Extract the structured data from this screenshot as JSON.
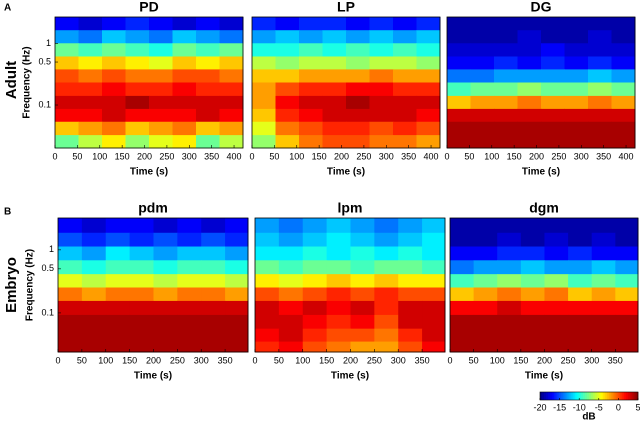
{
  "figure": {
    "panels": [
      "A",
      "B"
    ],
    "rows": [
      "Adult",
      "Embryo"
    ]
  },
  "chart_data": [
    {
      "type": "heatmap",
      "title": "PD",
      "x_label": "Time (s)",
      "y_label": "Frequency (Hz)",
      "xlim": [
        0,
        420
      ],
      "xticks": [
        0,
        50,
        100,
        150,
        200,
        250,
        300,
        350,
        400
      ],
      "ylim": [
        0.02,
        2.7
      ],
      "yticks": [
        1,
        0.5,
        0.1
      ],
      "log_y": true,
      "x": [
        26,
        79,
        131,
        184,
        236,
        289,
        341,
        394
      ],
      "y": [
        2.1,
        1.29,
        0.79,
        0.48,
        0.3,
        0.18,
        0.11,
        0.068,
        0.042,
        0.025
      ],
      "z": [
        [
          -17,
          -18,
          -17,
          -16,
          -17,
          -18,
          -17,
          -18
        ],
        [
          -13,
          -14,
          -12,
          -13,
          -14,
          -12,
          -13,
          -14
        ],
        [
          -8,
          -9,
          -8,
          -9,
          -10,
          -8,
          -9,
          -8
        ],
        [
          -3,
          -4,
          -3,
          -4,
          -5,
          -3,
          -4,
          -3
        ],
        [
          0,
          -1,
          0,
          -1,
          -1,
          0,
          0,
          -1
        ],
        [
          1,
          1,
          2,
          1,
          1,
          2,
          1,
          1
        ],
        [
          3,
          3,
          3,
          4,
          3,
          3,
          3,
          3
        ],
        [
          2,
          2,
          3,
          2,
          2,
          2,
          3,
          2
        ],
        [
          -3,
          -2,
          -1,
          -3,
          -2,
          -1,
          -3,
          -2
        ],
        [
          -8,
          -6,
          -4,
          -7,
          -5,
          -4,
          -8,
          -6
        ]
      ]
    },
    {
      "type": "heatmap",
      "title": "LP",
      "x_label": "Time (s)",
      "xlim": [
        0,
        420
      ],
      "xticks": [
        0,
        50,
        100,
        150,
        200,
        250,
        300,
        350,
        400
      ],
      "ylim": [
        0.02,
        2.7
      ],
      "log_y": true,
      "x": [
        26,
        79,
        131,
        184,
        236,
        289,
        341,
        394
      ],
      "y": [
        2.1,
        1.29,
        0.79,
        0.48,
        0.3,
        0.18,
        0.11,
        0.068,
        0.042,
        0.025
      ],
      "z": [
        [
          -16,
          -17,
          -16,
          -16,
          -17,
          -16,
          -17,
          -16
        ],
        [
          -13,
          -12,
          -13,
          -12,
          -13,
          -12,
          -13,
          -12
        ],
        [
          -10,
          -10,
          -9,
          -10,
          -9,
          -10,
          -9,
          -10
        ],
        [
          -6,
          -7,
          -6,
          -6,
          -7,
          -6,
          -6,
          -7
        ],
        [
          -3,
          -3,
          -2,
          -2,
          -2,
          -1,
          -2,
          -2
        ],
        [
          -2,
          0,
          1,
          1,
          2,
          2,
          1,
          1
        ],
        [
          -2,
          2,
          3,
          3,
          4,
          3,
          3,
          3
        ],
        [
          -3,
          1,
          2,
          3,
          3,
          3,
          3,
          2
        ],
        [
          -5,
          -1,
          0,
          1,
          1,
          0,
          1,
          0
        ],
        [
          -7,
          -3,
          -1,
          0,
          0,
          -1,
          -1,
          -2
        ]
      ]
    },
    {
      "type": "heatmap",
      "title": "DG",
      "x_label": "Time (s)",
      "xlim": [
        0,
        420
      ],
      "xticks": [
        0,
        50,
        100,
        150,
        200,
        250,
        300,
        350,
        400
      ],
      "ylim": [
        0.02,
        2.7
      ],
      "log_y": true,
      "x": [
        26,
        79,
        131,
        184,
        236,
        289,
        341,
        394
      ],
      "y": [
        2.1,
        1.29,
        0.79,
        0.48,
        0.3,
        0.18,
        0.11,
        0.068,
        0.042,
        0.025
      ],
      "z": [
        [
          -19,
          -19,
          -19,
          -19,
          -19,
          -19,
          -19,
          -19
        ],
        [
          -19,
          -19,
          -19,
          -18,
          -19,
          -19,
          -18,
          -19
        ],
        [
          -18,
          -18,
          -18,
          -18,
          -17,
          -18,
          -18,
          -18
        ],
        [
          -17,
          -17,
          -16,
          -17,
          -16,
          -17,
          -16,
          -17
        ],
        [
          -14,
          -14,
          -13,
          -13,
          -13,
          -13,
          -12,
          -13
        ],
        [
          -9,
          -8,
          -8,
          -7,
          -8,
          -8,
          -7,
          -8
        ],
        [
          -3,
          -2,
          -2,
          -1,
          -2,
          -2,
          -1,
          -2
        ],
        [
          3,
          3,
          3,
          3,
          3,
          3,
          3,
          3
        ],
        [
          4,
          4,
          4,
          4,
          4,
          4,
          4,
          4
        ],
        [
          4,
          4,
          4,
          4,
          4,
          4,
          4,
          4
        ]
      ]
    },
    {
      "type": "heatmap",
      "title": "pdm",
      "x_label": "Time (s)",
      "y_label": "Frequency (Hz)",
      "xlim": [
        0,
        398
      ],
      "xticks": [
        0,
        50,
        100,
        150,
        200,
        250,
        300,
        350
      ],
      "ylim": [
        0.024,
        3.2
      ],
      "yticks": [
        1,
        0.5,
        0.1
      ],
      "log_y": true,
      "x": [
        25,
        75,
        125,
        175,
        225,
        275,
        325,
        375
      ],
      "y": [
        2.4,
        1.45,
        0.88,
        0.53,
        0.32,
        0.2,
        0.12,
        0.072,
        0.044,
        0.028
      ],
      "z": [
        [
          -17,
          -18,
          -17,
          -17,
          -18,
          -17,
          -18,
          -17
        ],
        [
          -15,
          -16,
          -15,
          -16,
          -15,
          -16,
          -15,
          -16
        ],
        [
          -12,
          -13,
          -11,
          -12,
          -13,
          -12,
          -12,
          -13
        ],
        [
          -9,
          -10,
          -9,
          -9,
          -10,
          -9,
          -9,
          -10
        ],
        [
          -5,
          -6,
          -5,
          -5,
          -6,
          -5,
          -5,
          -6
        ],
        [
          -1,
          -2,
          -1,
          -1,
          -2,
          -1,
          -1,
          -2
        ],
        [
          3,
          3,
          3,
          3,
          3,
          3,
          3,
          3
        ],
        [
          4,
          4,
          4,
          4,
          4,
          4,
          4,
          4
        ],
        [
          4,
          4,
          4,
          4,
          4,
          4,
          4,
          4
        ],
        [
          4,
          4,
          4,
          4,
          4,
          4,
          4,
          4
        ]
      ]
    },
    {
      "type": "heatmap",
      "title": "lpm",
      "x_label": "Time (s)",
      "xlim": [
        0,
        398
      ],
      "xticks": [
        0,
        50,
        100,
        150,
        200,
        250,
        300,
        350
      ],
      "ylim": [
        0.024,
        3.2
      ],
      "log_y": true,
      "x": [
        25,
        75,
        125,
        175,
        225,
        275,
        325,
        375
      ],
      "y": [
        2.4,
        1.45,
        0.88,
        0.53,
        0.32,
        0.2,
        0.12,
        0.072,
        0.044,
        0.028
      ],
      "z": [
        [
          -13,
          -14,
          -13,
          -12,
          -13,
          -14,
          -13,
          -12
        ],
        [
          -12,
          -13,
          -12,
          -11,
          -12,
          -13,
          -12,
          -11
        ],
        [
          -11,
          -11,
          -10,
          -11,
          -10,
          -11,
          -10,
          -11
        ],
        [
          -8,
          -9,
          -8,
          -8,
          -9,
          -8,
          -8,
          -9
        ],
        [
          -4,
          -5,
          -4,
          -3,
          -4,
          -3,
          -4,
          -4
        ],
        [
          0,
          -1,
          0,
          1,
          0,
          1,
          0,
          0
        ],
        [
          3,
          2,
          3,
          2,
          3,
          1,
          3,
          3
        ],
        [
          3,
          3,
          2,
          1,
          2,
          0,
          3,
          3
        ],
        [
          2,
          3,
          1,
          0,
          0,
          -1,
          1,
          3
        ],
        [
          1,
          2,
          0,
          -1,
          -2,
          -2,
          0,
          2
        ]
      ]
    },
    {
      "type": "heatmap",
      "title": "dgm",
      "x_label": "Time (s)",
      "xlim": [
        0,
        398
      ],
      "xticks": [
        0,
        50,
        100,
        150,
        200,
        250,
        300,
        350
      ],
      "ylim": [
        0.024,
        3.2
      ],
      "log_y": true,
      "x": [
        25,
        75,
        125,
        175,
        225,
        275,
        325,
        375
      ],
      "y": [
        2.4,
        1.45,
        0.88,
        0.53,
        0.32,
        0.2,
        0.12,
        0.072,
        0.044,
        0.028
      ],
      "z": [
        [
          -19,
          -19,
          -19,
          -19,
          -19,
          -19,
          -19,
          -19
        ],
        [
          -19,
          -19,
          -18,
          -19,
          -18,
          -19,
          -18,
          -19
        ],
        [
          -17,
          -17,
          -16,
          -16,
          -17,
          -16,
          -17,
          -17
        ],
        [
          -14,
          -13,
          -13,
          -12,
          -13,
          -13,
          -12,
          -13
        ],
        [
          -9,
          -8,
          -7,
          -8,
          -7,
          -9,
          -8,
          -9
        ],
        [
          -3,
          -2,
          -1,
          -2,
          -1,
          -3,
          -2,
          -3
        ],
        [
          2,
          2,
          3,
          2,
          2,
          2,
          2,
          2
        ],
        [
          4,
          4,
          4,
          4,
          4,
          4,
          4,
          4
        ],
        [
          4,
          4,
          4,
          4,
          4,
          4,
          4,
          4
        ],
        [
          4,
          4,
          4,
          4,
          4,
          4,
          4,
          4
        ]
      ]
    },
    {
      "type": "colorbar",
      "label": "dB",
      "lim": [
        -20,
        5
      ],
      "ticks": [
        -20,
        -15,
        -10,
        -5,
        0,
        5
      ]
    }
  ]
}
